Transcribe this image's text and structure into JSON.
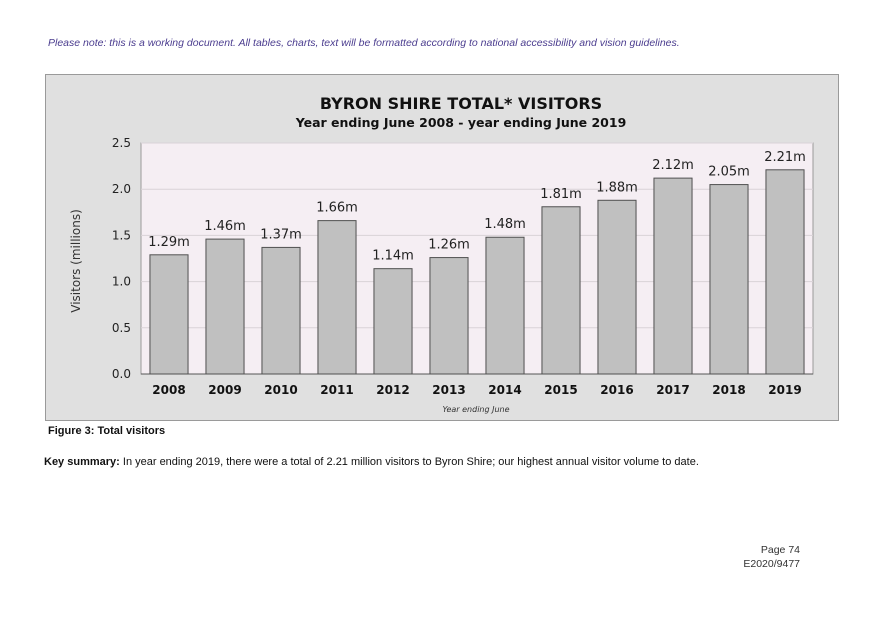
{
  "note": "Please note: this is a working document. All tables, charts, text will be formatted according to national accessibility and vision guidelines.",
  "figure_caption": "Figure 3: Total visitors",
  "summary": {
    "label": "Key summary:",
    "text": " In year ending 2019, there were a total of 2.21 million visitors to Byron Shire; our highest annual visitor volume to date."
  },
  "footer": {
    "page": "Page 74",
    "ref": "E2020/9477"
  },
  "chart_data": {
    "type": "bar",
    "title": "BYRON SHIRE TOTAL* VISITORS",
    "subtitle": "Year ending June 2008 - year ending June 2019",
    "xlabel": "Year ending June",
    "ylabel": "Visitors (millions)",
    "ylim": [
      0,
      2.5
    ],
    "yticks": [
      "0.0",
      "0.5",
      "1.0",
      "1.5",
      "2.0",
      "2.5"
    ],
    "categories": [
      "2008",
      "2009",
      "2010",
      "2011",
      "2012",
      "2013",
      "2014",
      "2015",
      "2016",
      "2017",
      "2018",
      "2019"
    ],
    "values": [
      1.29,
      1.46,
      1.37,
      1.66,
      1.14,
      1.26,
      1.48,
      1.81,
      1.88,
      2.12,
      2.05,
      2.21
    ],
    "data_labels": [
      "1.29m",
      "1.46m",
      "1.37m",
      "1.66m",
      "1.14m",
      "1.26m",
      "1.48m",
      "1.81m",
      "1.88m",
      "2.12m",
      "2.05m",
      "2.21m"
    ],
    "grid": true,
    "legend": "none",
    "colors": {
      "bar": "#c0c0c0",
      "bar_stroke": "#505050",
      "plot_bg": "#f5eef3",
      "frame_bg": "#e0e0e0"
    }
  }
}
